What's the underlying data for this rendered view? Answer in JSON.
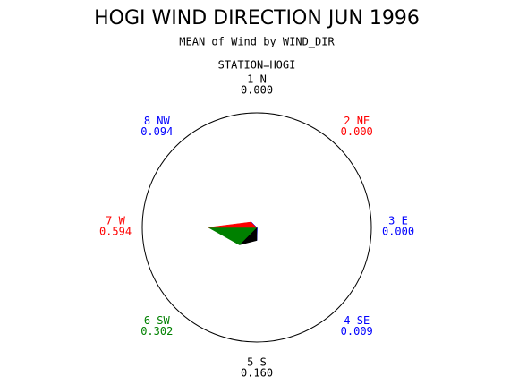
{
  "chart_data": {
    "type": "star",
    "title": "HOGI WIND DIRECTION JUN 1996",
    "subtitle": "MEAN of Wind by WIND_DIR",
    "station": "STATION=HOGI",
    "categories": [
      "1 N",
      "2 NE",
      "3 E",
      "4 SE",
      "5 S",
      "6 SW",
      "7 W",
      "8 NW"
    ],
    "values": [
      0,
      0,
      0,
      0.009,
      0.16,
      0.302,
      0.594,
      0.094
    ],
    "value_labels": [
      "0.000",
      "0.000",
      "0.000",
      "0.009",
      "0.160",
      "0.302",
      "0.594",
      "0.094"
    ],
    "colors": [
      "#000000",
      "#ff0000",
      "#0000ff",
      "#0000ff",
      "#000000",
      "#008000",
      "#ff0000",
      "#0000ff"
    ],
    "rlim": [
      0,
      1.4
    ]
  }
}
